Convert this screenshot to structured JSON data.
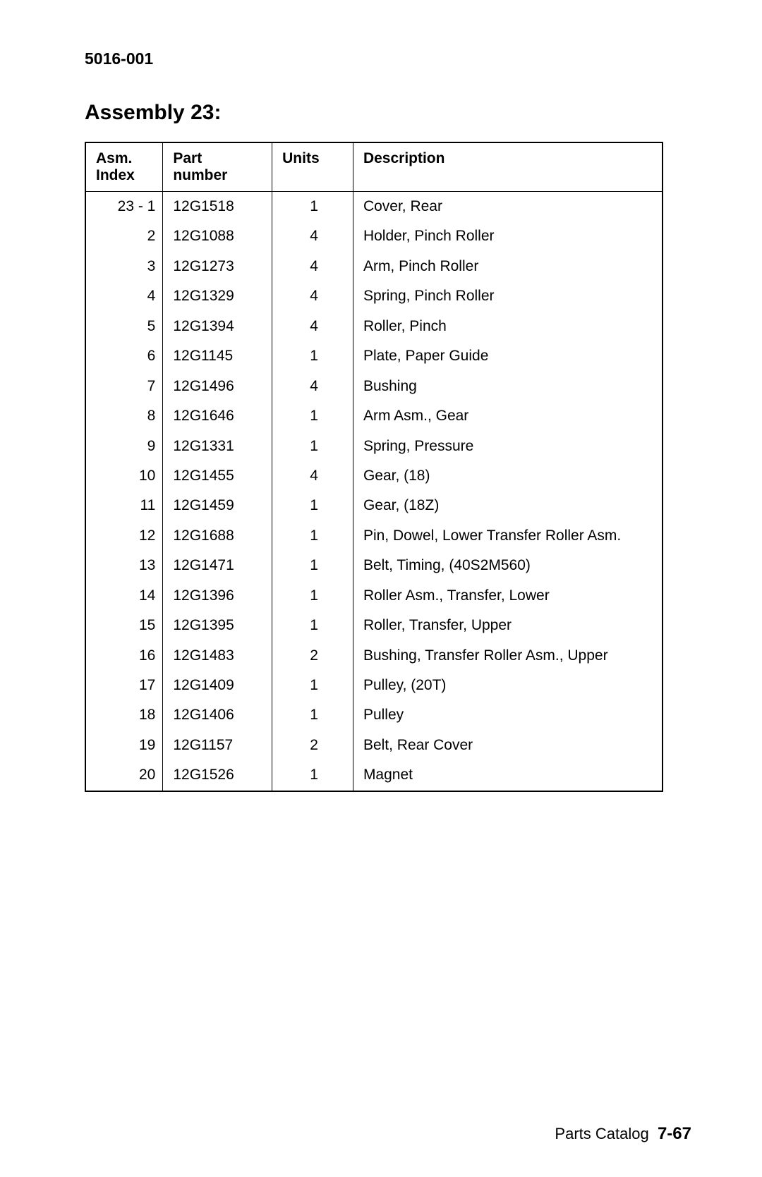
{
  "doc_number": "5016-001",
  "assembly_title": "Assembly 23:",
  "table": {
    "columns": {
      "asm_index_line1": "Asm.",
      "asm_index_line2": "Index",
      "part_line1": "Part",
      "part_line2": "number",
      "units": "Units",
      "description": "Description"
    },
    "rows": [
      {
        "idx": "23 - 1",
        "part": "12G1518",
        "units": "1",
        "desc": "Cover, Rear"
      },
      {
        "idx": "2",
        "part": "12G1088",
        "units": "4",
        "desc": "Holder, Pinch Roller"
      },
      {
        "idx": "3",
        "part": "12G1273",
        "units": "4",
        "desc": "Arm, Pinch Roller"
      },
      {
        "idx": "4",
        "part": "12G1329",
        "units": "4",
        "desc": "Spring, Pinch Roller"
      },
      {
        "idx": "5",
        "part": "12G1394",
        "units": "4",
        "desc": "Roller, Pinch"
      },
      {
        "idx": "6",
        "part": "12G1145",
        "units": "1",
        "desc": "Plate, Paper Guide"
      },
      {
        "idx": "7",
        "part": "12G1496",
        "units": "4",
        "desc": "Bushing"
      },
      {
        "idx": "8",
        "part": "12G1646",
        "units": "1",
        "desc": "Arm Asm., Gear"
      },
      {
        "idx": "9",
        "part": "12G1331",
        "units": "1",
        "desc": "Spring, Pressure"
      },
      {
        "idx": "10",
        "part": "12G1455",
        "units": "4",
        "desc": "Gear, (18)"
      },
      {
        "idx": "11",
        "part": "12G1459",
        "units": "1",
        "desc": "Gear, (18Z)"
      },
      {
        "idx": "12",
        "part": "12G1688",
        "units": "1",
        "desc": "Pin, Dowel, Lower Transfer Roller Asm."
      },
      {
        "idx": "13",
        "part": "12G1471",
        "units": "1",
        "desc": "Belt, Timing, (40S2M560)"
      },
      {
        "idx": "14",
        "part": "12G1396",
        "units": "1",
        "desc": "Roller Asm., Transfer, Lower"
      },
      {
        "idx": "15",
        "part": "12G1395",
        "units": "1",
        "desc": "Roller, Transfer, Upper"
      },
      {
        "idx": "16",
        "part": "12G1483",
        "units": "2",
        "desc": "Bushing, Transfer Roller Asm., Upper"
      },
      {
        "idx": "17",
        "part": "12G1409",
        "units": "1",
        "desc": "Pulley, (20T)"
      },
      {
        "idx": "18",
        "part": "12G1406",
        "units": "1",
        "desc": "Pulley"
      },
      {
        "idx": "19",
        "part": "12G1157",
        "units": "2",
        "desc": "Belt, Rear Cover"
      },
      {
        "idx": "20",
        "part": "12G1526",
        "units": "1",
        "desc": "Magnet"
      }
    ]
  },
  "footer": {
    "label": "Parts Catalog",
    "page": "7-67"
  }
}
